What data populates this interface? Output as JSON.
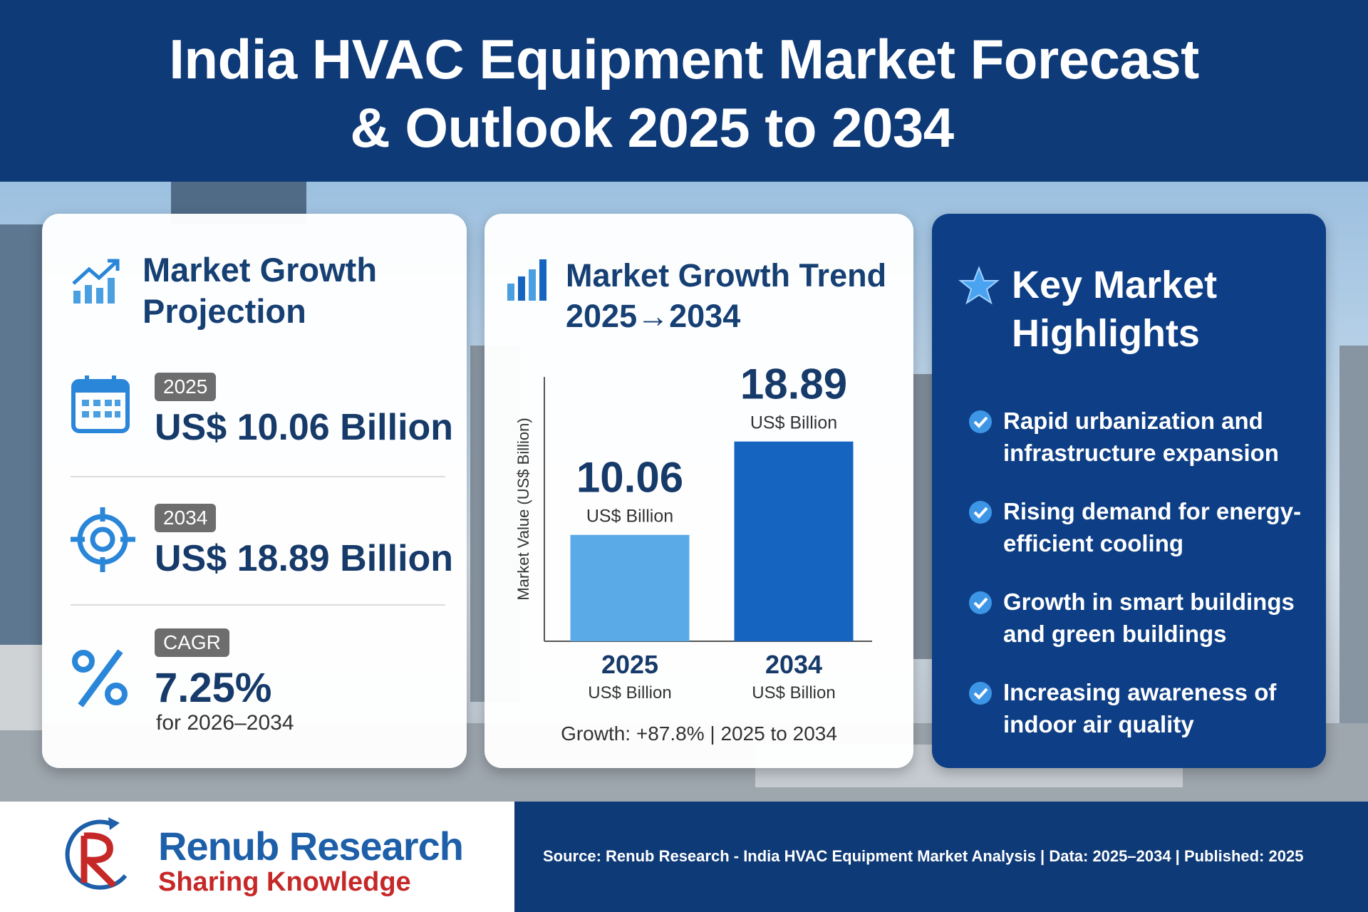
{
  "header": {
    "title": [
      "India HVAC Equipment Market Forecast",
      "& Outlook 2025 to 2034"
    ]
  },
  "projection": {
    "title": [
      "Market Growth",
      "Projection"
    ],
    "items": [
      {
        "badge": "2025",
        "value": "US$ 10.06 Billion"
      },
      {
        "badge": "2034",
        "value": "US$ 18.89 Billion"
      },
      {
        "badge": "CAGR",
        "value": "7.25%",
        "note": "for 2026–2034"
      }
    ]
  },
  "chart_data": {
    "type": "bar",
    "title": [
      "Market Growth Trend",
      "2025→2034"
    ],
    "y_label": "Market Value (US$ Billion)",
    "categories": [
      "2025",
      "2034"
    ],
    "values": [
      10.06,
      18.89
    ],
    "value_unit": "US$ Billion",
    "colors": [
      "#5aaae8",
      "#1565c0"
    ],
    "ylim": [
      0,
      25
    ],
    "annotation": "Growth: +87.8% | 2025 to 2034"
  },
  "highlights": {
    "title": [
      "Key Market",
      "Highlights"
    ],
    "items": [
      "Rapid urbanization and infrastructure expansion",
      "Rising demand for energy-efficient cooling",
      "Growth in smart buildings and green buildings",
      "Increasing awareness of indoor air quality"
    ]
  },
  "footer": {
    "brand": "Renub Research",
    "tagline": "Sharing Knowledge",
    "source": "Source: Renub Research - India HVAC Equipment Market Analysis | Data: 2025–2034 | Published: 2025"
  }
}
